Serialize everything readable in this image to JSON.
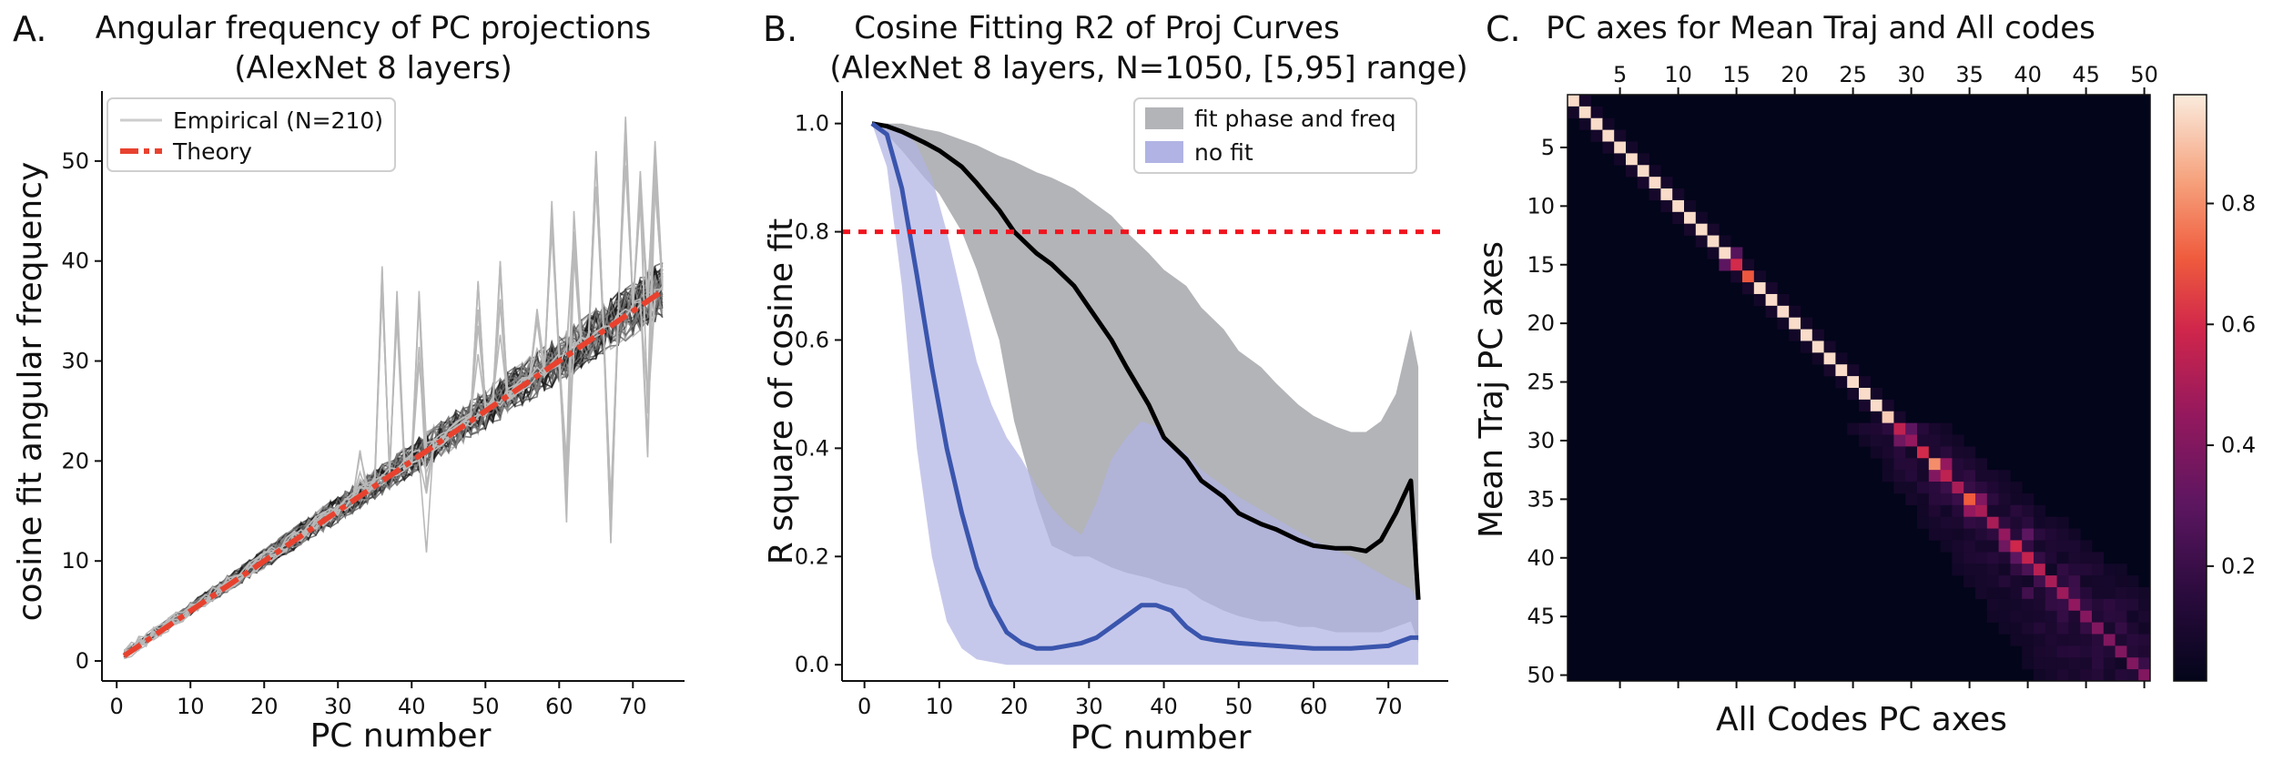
{
  "chart_data": [
    {
      "panel": "A.",
      "type": "line",
      "title": "Angular frequency of PC projections",
      "subtitle": "(AlexNet 8 layers)",
      "xlabel": "PC number",
      "ylabel": "cosine fit angular frequency",
      "xlim": [
        -2,
        77
      ],
      "ylim": [
        -2,
        57
      ],
      "xticks": [
        0,
        10,
        20,
        30,
        40,
        50,
        60,
        70
      ],
      "yticks": [
        0,
        10,
        20,
        30,
        40,
        50
      ],
      "legend": {
        "position": "top-left",
        "entries": [
          "Empirical (N=210)",
          "Theory"
        ]
      },
      "series": [
        {
          "name": "Empirical (N=210)",
          "kind": "many-traces",
          "color": "#b9b9b9",
          "x_range": [
            1,
            74
          ],
          "slope": 0.5,
          "intercept": 0.2,
          "spikes": [
            [
              33,
              22
            ],
            [
              36,
              40
            ],
            [
              38,
              37
            ],
            [
              41,
              37
            ],
            [
              42,
              19
            ],
            [
              49,
              38
            ],
            [
              52,
              40
            ],
            [
              57,
              36
            ],
            [
              59,
              46
            ],
            [
              61,
              20
            ],
            [
              62,
              45
            ],
            [
              65,
              51
            ],
            [
              67,
              16
            ],
            [
              69,
              55
            ],
            [
              71,
              49
            ],
            [
              72,
              27
            ],
            [
              73,
              52
            ]
          ]
        },
        {
          "name": "Theory",
          "kind": "line",
          "color": "#e8422f",
          "x": [
            1,
            74
          ],
          "y": [
            0.5,
            37
          ]
        }
      ]
    },
    {
      "panel": "B.",
      "type": "area",
      "title": "Cosine Fitting R2 of Proj Curves",
      "subtitle": "(AlexNet 8 layers, N=1050, [5,95] range)",
      "xlabel": "PC number",
      "ylabel": "R square of cosine fit",
      "xlim": [
        -3,
        78
      ],
      "ylim": [
        -0.03,
        1.06
      ],
      "xticks": [
        0,
        10,
        20,
        30,
        40,
        50,
        60,
        70
      ],
      "yticks": [
        0.0,
        0.2,
        0.4,
        0.6,
        0.8,
        1.0
      ],
      "threshold": 0.8,
      "legend": {
        "position": "top-right",
        "entries": [
          "fit phase and freq",
          "no fit"
        ]
      },
      "series": [
        {
          "name": "fit phase and freq",
          "color": "#000000",
          "band_color": "#b3b4b8",
          "x": [
            1,
            3,
            5,
            8,
            10,
            13,
            15,
            18,
            20,
            23,
            25,
            28,
            30,
            33,
            35,
            38,
            40,
            43,
            45,
            48,
            50,
            53,
            55,
            58,
            60,
            63,
            65,
            67,
            69,
            71,
            73,
            74
          ],
          "mean": [
            1.0,
            0.995,
            0.985,
            0.965,
            0.95,
            0.92,
            0.89,
            0.84,
            0.8,
            0.76,
            0.74,
            0.7,
            0.66,
            0.6,
            0.55,
            0.48,
            0.42,
            0.38,
            0.34,
            0.31,
            0.28,
            0.26,
            0.25,
            0.23,
            0.22,
            0.215,
            0.215,
            0.21,
            0.23,
            0.28,
            0.34,
            0.12
          ],
          "upper": [
            1.0,
            1.0,
            1.0,
            0.99,
            0.985,
            0.97,
            0.96,
            0.94,
            0.93,
            0.91,
            0.9,
            0.88,
            0.86,
            0.83,
            0.8,
            0.76,
            0.73,
            0.7,
            0.66,
            0.62,
            0.58,
            0.55,
            0.52,
            0.48,
            0.46,
            0.44,
            0.43,
            0.43,
            0.45,
            0.5,
            0.62,
            0.55
          ],
          "lower": [
            1.0,
            0.98,
            0.95,
            0.9,
            0.87,
            0.8,
            0.73,
            0.6,
            0.45,
            0.3,
            0.22,
            0.2,
            0.2,
            0.18,
            0.17,
            0.16,
            0.15,
            0.14,
            0.12,
            0.1,
            0.09,
            0.08,
            0.08,
            0.07,
            0.07,
            0.06,
            0.06,
            0.06,
            0.06,
            0.07,
            0.08,
            0.04
          ]
        },
        {
          "name": "no fit",
          "color": "#3a55ad",
          "band_color": "#b0b3e3",
          "x": [
            1,
            3,
            5,
            7,
            9,
            11,
            13,
            15,
            17,
            19,
            21,
            23,
            25,
            27,
            29,
            31,
            33,
            35,
            37,
            39,
            41,
            43,
            45,
            47,
            50,
            55,
            60,
            65,
            70,
            73,
            74
          ],
          "mean": [
            1.0,
            0.98,
            0.88,
            0.72,
            0.55,
            0.4,
            0.28,
            0.18,
            0.11,
            0.06,
            0.04,
            0.03,
            0.03,
            0.035,
            0.04,
            0.05,
            0.07,
            0.09,
            0.11,
            0.11,
            0.1,
            0.07,
            0.05,
            0.045,
            0.04,
            0.035,
            0.03,
            0.03,
            0.035,
            0.05,
            0.05
          ],
          "upper": [
            1.0,
            1.0,
            0.99,
            0.96,
            0.9,
            0.8,
            0.68,
            0.56,
            0.48,
            0.42,
            0.38,
            0.33,
            0.29,
            0.26,
            0.24,
            0.3,
            0.38,
            0.42,
            0.45,
            0.44,
            0.41,
            0.39,
            0.36,
            0.34,
            0.31,
            0.27,
            0.23,
            0.2,
            0.16,
            0.14,
            0.12
          ],
          "lower": [
            1.0,
            0.92,
            0.7,
            0.4,
            0.2,
            0.08,
            0.03,
            0.01,
            0.005,
            0.0,
            0.0,
            0.0,
            0.0,
            0.0,
            0.0,
            0.0,
            0.0,
            0.0,
            0.0,
            0.0,
            0.0,
            0.0,
            0.0,
            0.0,
            0.0,
            0.0,
            0.0,
            0.0,
            0.0,
            0.0,
            0.0
          ]
        }
      ]
    },
    {
      "panel": "C.",
      "type": "heatmap",
      "title": "PC axes for Mean Traj and All codes",
      "xlabel": "All Codes PC axes",
      "ylabel": "Mean Traj PC axes",
      "size": 50,
      "xticks": [
        5,
        10,
        15,
        20,
        25,
        30,
        35,
        40,
        45,
        50
      ],
      "yticks": [
        5,
        10,
        15,
        20,
        25,
        30,
        35,
        40,
        45,
        50
      ],
      "colorbar_ticks": [
        0.2,
        0.4,
        0.6,
        0.8
      ],
      "clim": [
        0.01,
        0.98
      ],
      "diagonal_value": 0.95,
      "highlights": [
        [
          15,
          15,
          0.6
        ],
        [
          15,
          14,
          0.3
        ],
        [
          14,
          15,
          0.28
        ],
        [
          16,
          16,
          0.7
        ],
        [
          29,
          29,
          0.55
        ],
        [
          30,
          30,
          0.45
        ],
        [
          30,
          29,
          0.35
        ],
        [
          29,
          30,
          0.3
        ],
        [
          31,
          31,
          0.6
        ],
        [
          32,
          33,
          0.45
        ],
        [
          33,
          32,
          0.4
        ],
        [
          33,
          33,
          0.55
        ],
        [
          34,
          34,
          0.5
        ],
        [
          35,
          36,
          0.4
        ],
        [
          36,
          35,
          0.45
        ],
        [
          36,
          36,
          0.5
        ],
        [
          37,
          37,
          0.5
        ],
        [
          38,
          38,
          0.45
        ],
        [
          39,
          38,
          0.35
        ],
        [
          40,
          39,
          0.3
        ],
        [
          38,
          40,
          0.3
        ],
        [
          41,
          40,
          0.25
        ],
        [
          43,
          40,
          0.22
        ],
        [
          42,
          44,
          0.2
        ],
        [
          45,
          43,
          0.18
        ],
        [
          46,
          45,
          0.18
        ],
        [
          44,
          47,
          0.16
        ],
        [
          48,
          46,
          0.15
        ]
      ]
    }
  ]
}
